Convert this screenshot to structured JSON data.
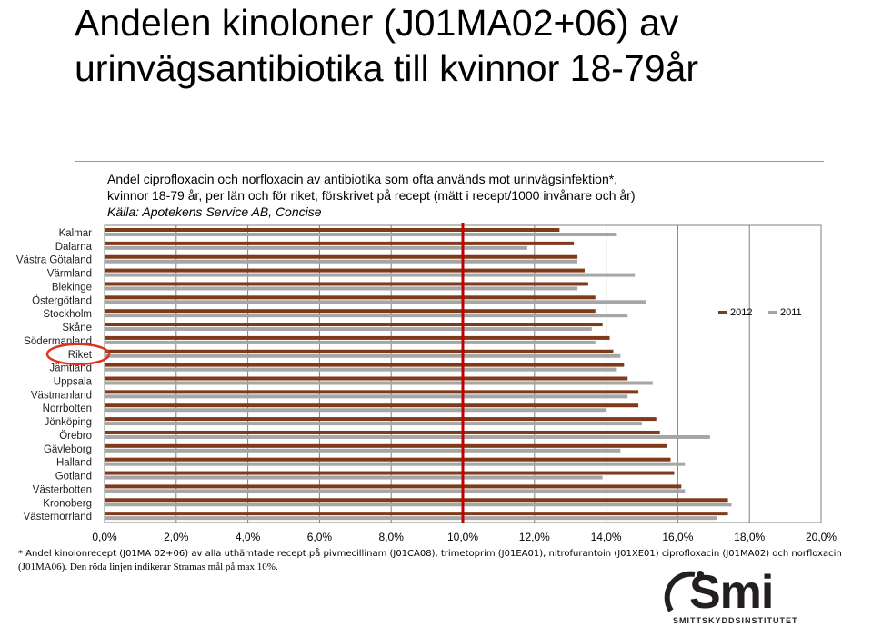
{
  "slide": {
    "title": "Andelen kinoloner (J01MA02+06) av urinvägsantibiotika till kvinnor 18-79år",
    "subtitle_line1": "Andel ciprofloxacin och norfloxacin av antibiotika som ofta används mot urinvägsinfektion*,",
    "subtitle_line2": "kvinnor 18-79 år, per län och för riket, förskrivet på recept (mätt i recept/1000 invånare och år)",
    "source": "Källa: Apotekens Service AB, Concise",
    "footnote_line1": "* Andel kinolonrecept (J01MA 02+06) av alla uthämtade recept på pivmecillinam (J01CA08), trimetoprim (J01EA01), nitrofurantoin (J01XE01) ciprofloxacin (J01MA02) och norfloxacin",
    "footnote_line2": "(J01MA06). Den röda linjen indikerar Stramas mål på max 10%.",
    "logo_text": "Smi",
    "logo_subtext": "SMITTSKYDDSINSTITUTET"
  },
  "colors": {
    "series_2012": "#7f3a1a",
    "series_2011": "#a6a6a6",
    "target_line": "#c00000",
    "highlight_circle": "#e03020",
    "plot_border": "#808080",
    "gridline": "#808080"
  },
  "chart_data": {
    "type": "bar",
    "orientation": "horizontal",
    "categories": [
      "Kalmar",
      "Dalarna",
      "Västra Götaland",
      "Värmland",
      "Blekinge",
      "Östergötland",
      "Stockholm",
      "Skåne",
      "Södermanland",
      "Riket",
      "Jämtland",
      "Uppsala",
      "Västmanland",
      "Norrbotten",
      "Jönköping",
      "Örebro",
      "Gävleborg",
      "Halland",
      "Gotland",
      "Västerbotten",
      "Kronoberg",
      "Västernorrland"
    ],
    "series": [
      {
        "name": "2012",
        "values": [
          12.7,
          13.1,
          13.2,
          13.4,
          13.5,
          13.7,
          13.7,
          13.9,
          14.1,
          14.2,
          14.5,
          14.6,
          14.9,
          14.9,
          15.4,
          15.5,
          15.7,
          15.8,
          15.9,
          16.1,
          17.4,
          17.4
        ]
      },
      {
        "name": "2011",
        "values": [
          14.3,
          11.8,
          13.2,
          14.8,
          13.2,
          15.1,
          14.6,
          13.6,
          13.7,
          14.4,
          14.3,
          15.3,
          14.6,
          14.0,
          15.0,
          16.9,
          14.4,
          16.2,
          13.9,
          16.2,
          17.5,
          17.1
        ]
      }
    ],
    "xlim": [
      0,
      20
    ],
    "x_ticks": [
      "0,0%",
      "2,0%",
      "4,0%",
      "6,0%",
      "8,0%",
      "10,0%",
      "12,0%",
      "14,0%",
      "16,0%",
      "18,0%",
      "20,0%"
    ],
    "target_value": 10,
    "highlighted_category": "Riket",
    "legend": [
      "2012",
      "2011"
    ],
    "legend_placement": "right",
    "grid": true
  }
}
